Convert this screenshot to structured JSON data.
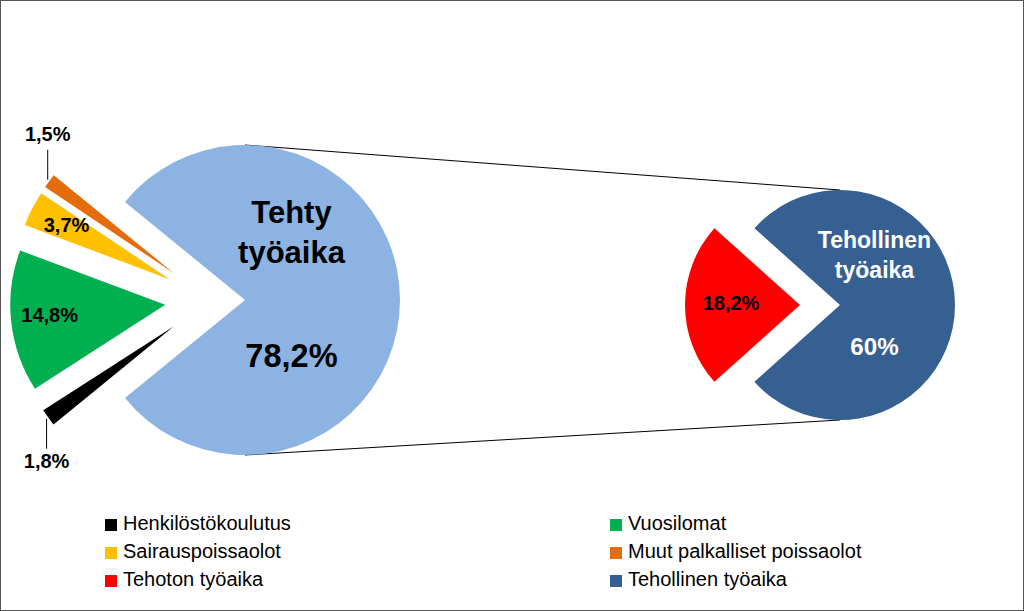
{
  "chart_data": [
    {
      "type": "pie",
      "categories": [
        "Henkilöstökoulutus",
        "Vuosilomat",
        "Sairauspoissaolot",
        "Muut palkalliset poissaolot",
        "Tehty työaika"
      ],
      "values": [
        1.8,
        14.8,
        3.7,
        1.5,
        78.2
      ],
      "value_labels": [
        "1,8%",
        "14,8%",
        "3,7%",
        "1,5%",
        "78,2%"
      ],
      "colors": [
        "#000000",
        "#00b050",
        "#ffc000",
        "#e46c0a",
        "#8db3e2"
      ],
      "data_labels": true,
      "legend": "bottom"
    },
    {
      "type": "pie",
      "categories": [
        "Tehoton työaika",
        "Tehollinen työaika"
      ],
      "values": [
        18.2,
        60
      ],
      "value_labels": [
        "18,2%",
        "60%"
      ],
      "colors": [
        "#ff0000",
        "#376092"
      ],
      "data_labels": true,
      "legend": "bottom"
    }
  ]
}
